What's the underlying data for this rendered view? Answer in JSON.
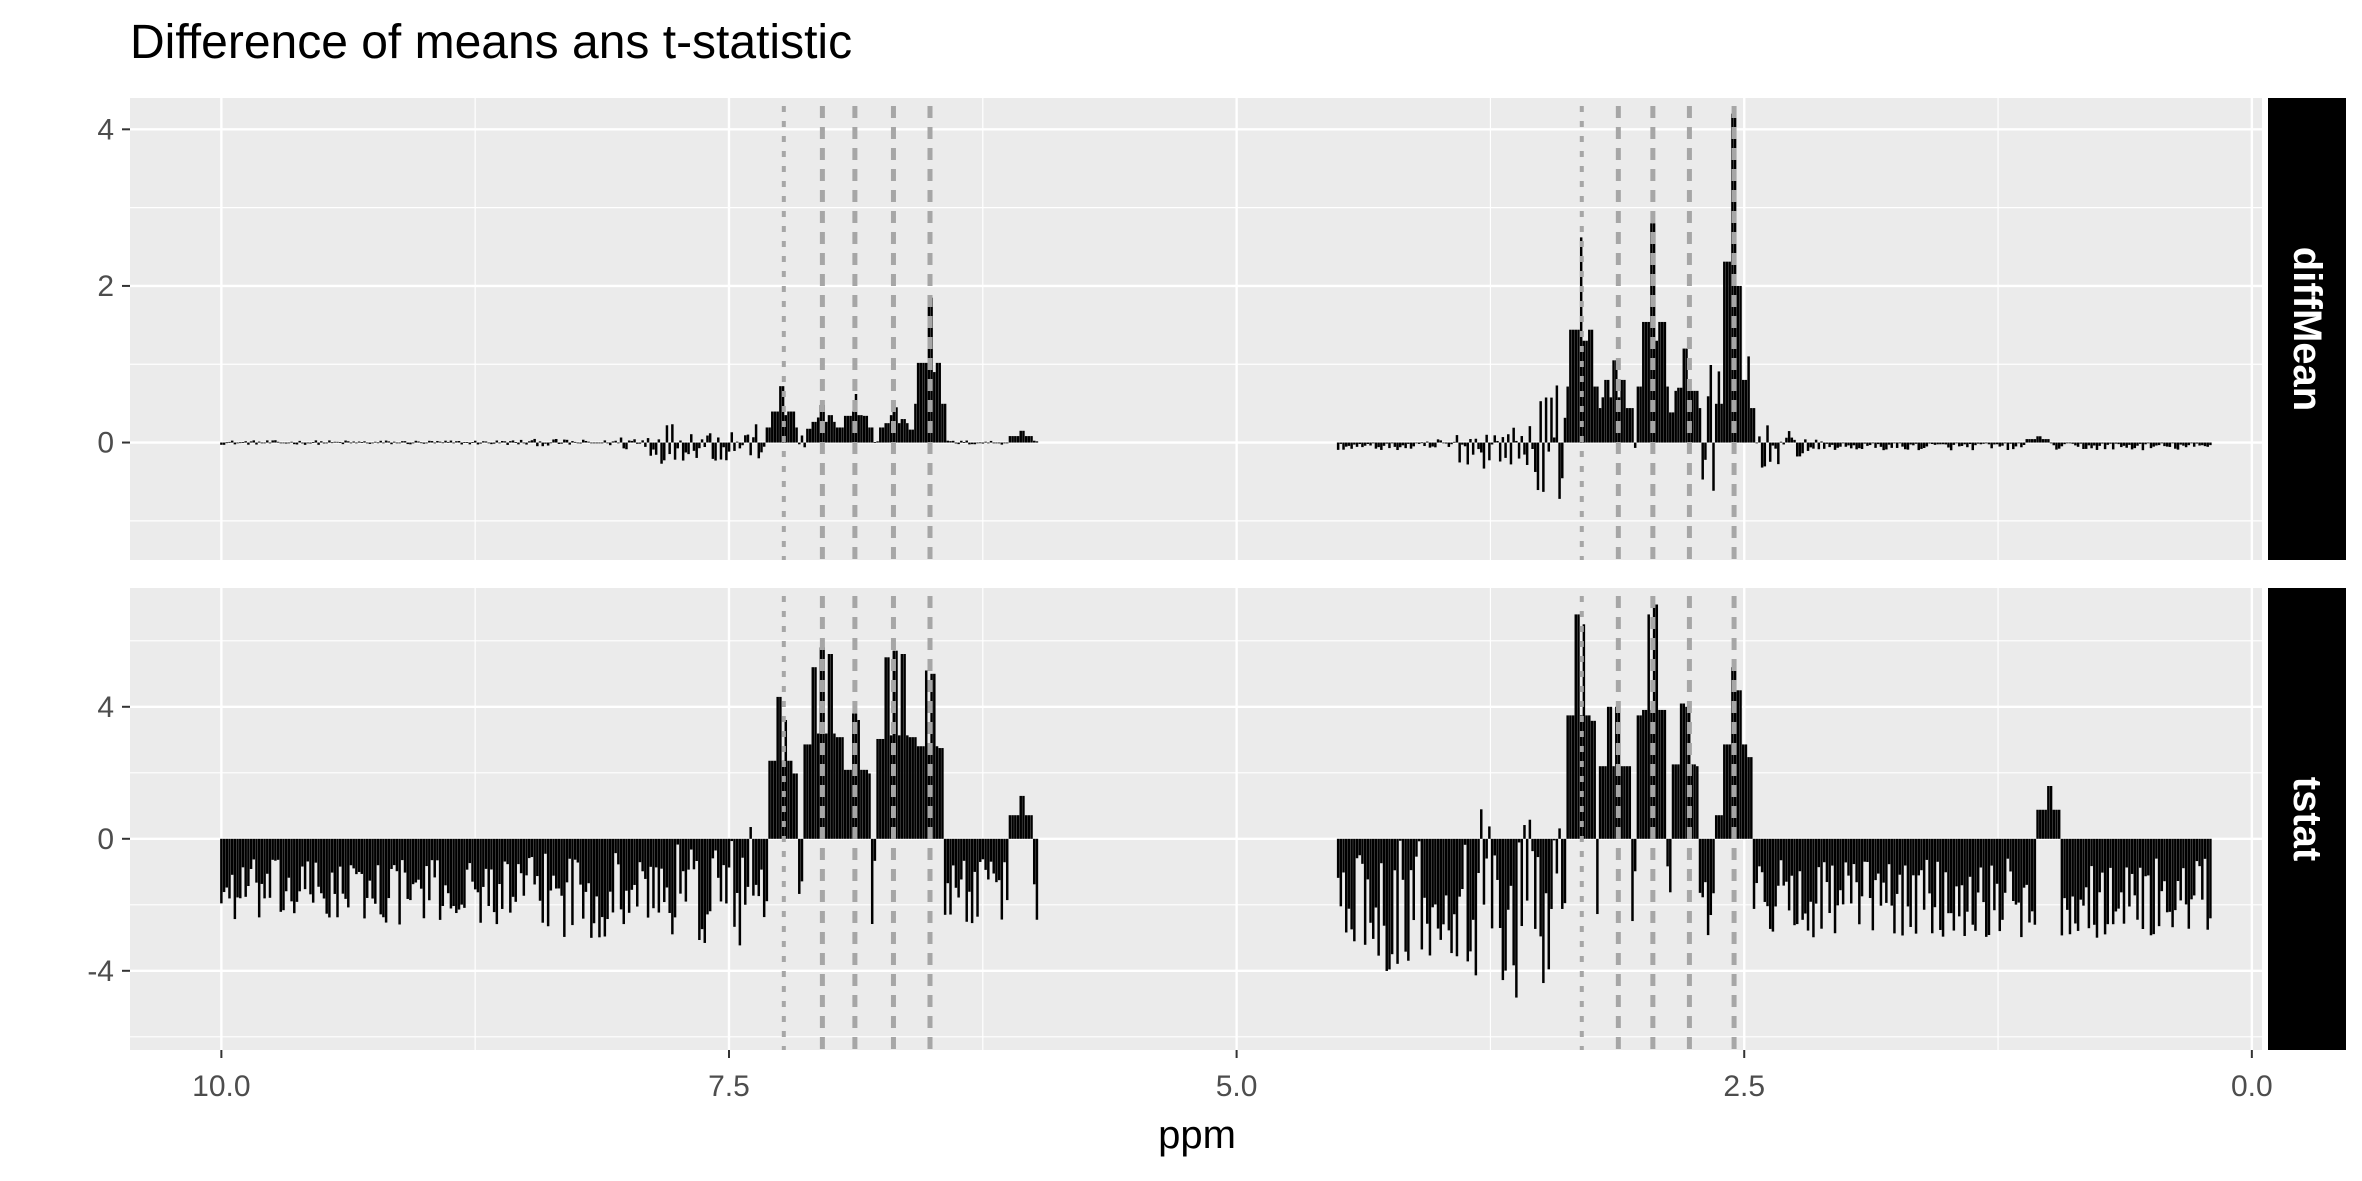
{
  "chart_data": {
    "type": "bar",
    "title": "Difference of means ans t-statistic",
    "xlabel": "ppm",
    "x_reversed": true,
    "xlim": [
      10.45,
      -0.05
    ],
    "x_ticks": [
      10.0,
      7.5,
      5.0,
      2.5,
      0.0
    ],
    "x_tick_labels": [
      "10.0",
      "7.5",
      "5.0",
      "2.5",
      "0.0"
    ],
    "background_color": "#ebebeb",
    "grid_color": "#ffffff",
    "bar_color": "#000000",
    "strip_color": "#000000",
    "reference_line_color": "#a6a6a6",
    "reference_lines": [
      {
        "ppm": 7.23,
        "style": "dotted"
      },
      {
        "ppm": 7.04,
        "style": "dashed"
      },
      {
        "ppm": 6.88,
        "style": "dashed"
      },
      {
        "ppm": 6.69,
        "style": "dashed"
      },
      {
        "ppm": 6.51,
        "style": "dashed"
      },
      {
        "ppm": 3.3,
        "style": "dotted"
      },
      {
        "ppm": 3.12,
        "style": "dashed"
      },
      {
        "ppm": 2.95,
        "style": "dashed"
      },
      {
        "ppm": 2.77,
        "style": "dashed"
      },
      {
        "ppm": 2.55,
        "style": "dashed"
      }
    ],
    "panels": [
      {
        "strip": "diffMean",
        "ylim": [
          -1.5,
          4.4
        ],
        "y_ticks": [
          0,
          2,
          4
        ],
        "y_tick_labels": [
          "0",
          "2",
          "4"
        ],
        "segments": [
          {
            "from": 10.0,
            "to": 5.98,
            "base": 0.0,
            "amp": 0.03,
            "amp_bumps": [
              [
                8.4,
                0.05
              ],
              [
                7.8,
                0.3
              ],
              [
                7.55,
                0.3
              ],
              [
                7.35,
                0.25
              ]
            ],
            "points": [
              [
                7.26,
                0.35
              ],
              [
                7.24,
                0.72
              ],
              [
                7.22,
                0.35
              ],
              [
                7.06,
                0.32
              ],
              [
                7.04,
                0.48
              ],
              [
                7.0,
                0.35
              ],
              [
                6.88,
                0.4
              ],
              [
                6.87,
                0.62
              ],
              [
                6.85,
                0.35
              ],
              [
                6.7,
                0.35
              ],
              [
                6.68,
                0.45
              ],
              [
                6.64,
                0.3
              ],
              [
                6.53,
                0.9
              ],
              [
                6.51,
                1.85
              ],
              [
                6.49,
                0.9
              ],
              [
                6.06,
                0.15
              ]
            ]
          },
          {
            "from": 4.5,
            "to": 0.2,
            "base": -0.05,
            "amp": 0.05,
            "amp_bumps": [
              [
                3.8,
                0.3
              ],
              [
                3.55,
                0.35
              ],
              [
                3.4,
                0.9
              ],
              [
                2.65,
                1.2
              ],
              [
                2.4,
                0.3
              ]
            ],
            "points": [
              [
                3.32,
                1.3
              ],
              [
                3.3,
                2.62
              ],
              [
                3.28,
                1.3
              ],
              [
                3.18,
                0.8
              ],
              [
                3.14,
                1.05
              ],
              [
                3.1,
                0.8
              ],
              [
                2.97,
                1.3
              ],
              [
                2.95,
                2.8
              ],
              [
                2.93,
                1.3
              ],
              [
                2.82,
                0.7
              ],
              [
                2.79,
                1.2
              ],
              [
                2.77,
                0.8
              ],
              [
                2.58,
                0.9
              ],
              [
                2.55,
                4.2
              ],
              [
                2.53,
                2.0
              ],
              [
                2.5,
                0.8
              ],
              [
                1.05,
                0.08
              ]
            ]
          }
        ]
      },
      {
        "strip": "tstat",
        "ylim": [
          -6.4,
          7.6
        ],
        "y_ticks": [
          -4,
          0,
          4
        ],
        "y_tick_labels": [
          "-4",
          "0",
          "4"
        ],
        "segments": [
          {
            "from": 10.0,
            "to": 5.98,
            "base": -1.6,
            "amp": 1.0,
            "amp_bumps": [
              [
                8.2,
                1.6
              ],
              [
                7.6,
                2.0
              ],
              [
                7.35,
                2.4
              ]
            ],
            "points": [
              [
                7.25,
                4.3
              ],
              [
                7.22,
                3.6
              ],
              [
                7.08,
                5.2
              ],
              [
                7.04,
                5.8
              ],
              [
                7.0,
                5.6
              ],
              [
                6.88,
                3.8
              ],
              [
                6.86,
                3.6
              ],
              [
                6.72,
                5.5
              ],
              [
                6.68,
                5.7
              ],
              [
                6.64,
                5.6
              ],
              [
                6.53,
                5.1
              ],
              [
                6.5,
                5.0
              ],
              [
                6.06,
                1.3
              ]
            ]
          },
          {
            "from": 4.5,
            "to": 0.2,
            "base": -1.8,
            "amp": 1.2,
            "amp_bumps": [
              [
                4.2,
                2.5
              ],
              [
                3.7,
                3.6
              ],
              [
                3.55,
                4.0
              ],
              [
                2.0,
                1.2
              ]
            ],
            "points": [
              [
                3.32,
                6.8
              ],
              [
                3.29,
                6.5
              ],
              [
                3.16,
                4.0
              ],
              [
                3.12,
                4.0
              ],
              [
                2.97,
                6.8
              ],
              [
                2.94,
                7.1
              ],
              [
                2.8,
                4.1
              ],
              [
                2.78,
                4.0
              ],
              [
                2.58,
                1.3
              ],
              [
                2.55,
                5.2
              ],
              [
                2.52,
                4.5
              ],
              [
                1.0,
                1.6
              ]
            ]
          }
        ]
      }
    ]
  }
}
